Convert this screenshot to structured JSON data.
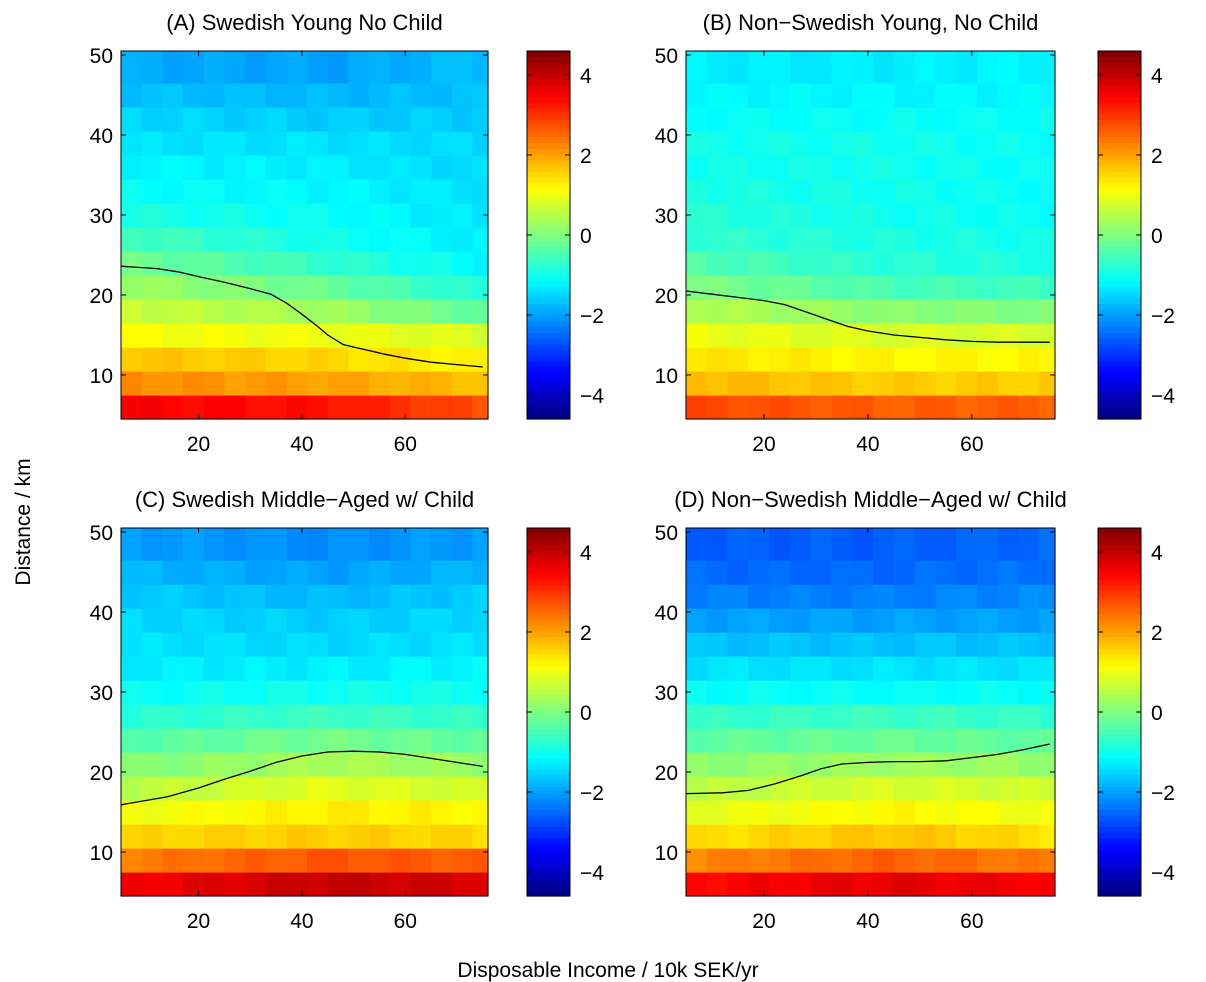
{
  "figure": {
    "ylabel": "Distance / km",
    "xlabel": "Disposable Income / 10k SEK/yr"
  },
  "colorbar": {
    "colormap": "jet",
    "range": [
      -4.6,
      4.6
    ],
    "ticks": [
      4,
      2,
      0,
      -2,
      -4
    ],
    "tick_labels": [
      "4",
      "2",
      "0",
      "−2",
      "−4"
    ]
  },
  "chart_data": [
    {
      "type": "heatmap",
      "title": "(A) Swedish Young No Child",
      "xlim": [
        5,
        76
      ],
      "ylim": [
        4.5,
        50.5
      ],
      "xticks": [
        20,
        40,
        60
      ],
      "yticks": [
        10,
        20,
        30,
        40,
        50
      ],
      "x_centers": [
        7,
        11,
        15,
        19,
        23,
        27,
        31,
        35,
        39,
        43,
        47,
        51,
        55,
        59,
        63,
        67,
        71,
        75
      ],
      "y_centers": [
        6,
        9,
        12,
        15,
        18,
        21,
        24,
        27,
        30,
        33,
        36,
        39,
        42,
        45,
        48
      ],
      "z_columns": {
        "x": [
          5,
          45,
          76
        ],
        "y_rows": [
          6,
          9,
          12,
          15,
          18,
          21,
          24,
          27,
          30,
          33,
          36,
          39,
          42,
          45,
          48
        ],
        "values": [
          [
            3.5,
            2.2,
            1.7,
            1.1,
            0.7,
            0.3,
            -0.1,
            -0.5,
            -0.9,
            -1.1,
            -1.2,
            -1.4,
            -1.5,
            -1.7,
            -1.9
          ],
          [
            3.3,
            2.0,
            1.5,
            1.0,
            0.3,
            -0.2,
            -0.7,
            -1.0,
            -1.1,
            -1.2,
            -1.3,
            -1.4,
            -1.6,
            -1.8,
            -2.0
          ],
          [
            2.7,
            1.7,
            1.2,
            0.8,
            -0.3,
            -0.9,
            -1.2,
            -1.3,
            -1.4,
            -1.4,
            -1.5,
            -1.5,
            -1.6,
            -1.7,
            -1.7
          ]
        ]
      },
      "series": [
        {
          "x": [
            5,
            12,
            16,
            20,
            25,
            30,
            34,
            37,
            40,
            43,
            45,
            48,
            52,
            56,
            60,
            65,
            70,
            75
          ],
          "y": [
            23.6,
            23.3,
            22.9,
            22.3,
            21.6,
            20.8,
            20.1,
            19.0,
            17.6,
            16.1,
            15.0,
            13.8,
            13.2,
            12.6,
            12.1,
            11.6,
            11.3,
            11.0
          ]
        }
      ]
    },
    {
      "type": "heatmap",
      "title": "(B) Non−Swedish Young, No Child",
      "xlim": [
        5,
        76
      ],
      "ylim": [
        4.5,
        50.5
      ],
      "xticks": [
        20,
        40,
        60
      ],
      "yticks": [
        10,
        20,
        30,
        40,
        50
      ],
      "x_centers": [
        7,
        11,
        15,
        19,
        23,
        27,
        31,
        35,
        39,
        43,
        47,
        51,
        55,
        59,
        63,
        67,
        71,
        75
      ],
      "y_centers": [
        6,
        9,
        12,
        15,
        18,
        21,
        24,
        27,
        30,
        33,
        36,
        39,
        42,
        45,
        48
      ],
      "z_columns": {
        "x": [
          5,
          45,
          76
        ],
        "y_rows": [
          6,
          9,
          12,
          15,
          18,
          21,
          24,
          27,
          30,
          33,
          36,
          39,
          42,
          45,
          48
        ],
        "values": [
          [
            2.8,
            1.8,
            1.4,
            1.0,
            0.5,
            0.0,
            -0.4,
            -0.7,
            -0.8,
            -0.9,
            -1.0,
            -1.0,
            -1.1,
            -1.2,
            -1.3
          ],
          [
            2.6,
            1.6,
            1.2,
            0.8,
            0.1,
            -0.5,
            -0.8,
            -0.9,
            -1.0,
            -1.0,
            -1.0,
            -1.0,
            -1.1,
            -1.2,
            -1.3
          ],
          [
            2.6,
            1.6,
            1.2,
            0.8,
            0.0,
            -0.6,
            -0.9,
            -1.0,
            -1.1,
            -1.1,
            -1.1,
            -1.1,
            -1.1,
            -1.2,
            -1.2
          ]
        ]
      },
      "series": [
        {
          "x": [
            5,
            10,
            15,
            20,
            24,
            28,
            32,
            36,
            40,
            45,
            50,
            55,
            60,
            65,
            70,
            75
          ],
          "y": [
            20.5,
            20.1,
            19.7,
            19.3,
            18.8,
            17.9,
            17.0,
            16.1,
            15.5,
            15.0,
            14.7,
            14.4,
            14.2,
            14.1,
            14.1,
            14.1
          ]
        }
      ]
    },
    {
      "type": "heatmap",
      "title": "(C) Swedish Middle−Aged w/ Child",
      "xlim": [
        5,
        76
      ],
      "ylim": [
        4.5,
        50.5
      ],
      "xticks": [
        20,
        40,
        60
      ],
      "yticks": [
        10,
        20,
        30,
        40,
        50
      ],
      "x_centers": [
        7,
        11,
        15,
        19,
        23,
        27,
        31,
        35,
        39,
        43,
        47,
        51,
        55,
        59,
        63,
        67,
        71,
        75
      ],
      "y_centers": [
        6,
        9,
        12,
        15,
        18,
        21,
        24,
        27,
        30,
        33,
        36,
        39,
        42,
        45,
        48
      ],
      "z_columns": {
        "x": [
          5,
          45,
          76
        ],
        "y_rows": [
          6,
          9,
          12,
          15,
          18,
          21,
          24,
          27,
          30,
          33,
          36,
          39,
          42,
          45,
          48
        ],
        "values": [
          [
            3.5,
            2.3,
            1.5,
            1.0,
            0.5,
            0.0,
            -0.4,
            -0.8,
            -1.1,
            -1.3,
            -1.4,
            -1.5,
            -1.6,
            -1.8,
            -2.0
          ],
          [
            4.0,
            2.7,
            1.6,
            1.3,
            0.9,
            0.4,
            -0.1,
            -0.6,
            -1.0,
            -1.3,
            -1.5,
            -1.6,
            -1.8,
            -2.0,
            -2.2
          ],
          [
            3.8,
            2.6,
            1.5,
            1.2,
            0.7,
            0.2,
            -0.3,
            -0.7,
            -1.0,
            -1.2,
            -1.4,
            -1.5,
            -1.6,
            -1.8,
            -2.0
          ]
        ]
      },
      "series": [
        {
          "x": [
            5,
            14,
            20,
            25,
            30,
            35,
            40,
            45,
            50,
            55,
            60,
            65,
            70,
            75
          ],
          "y": [
            15.9,
            16.9,
            18.0,
            19.1,
            20.1,
            21.2,
            22.0,
            22.5,
            22.6,
            22.5,
            22.2,
            21.7,
            21.2,
            20.7
          ]
        }
      ]
    },
    {
      "type": "heatmap",
      "title": "(D) Non−Swedish Middle−Aged w/ Child",
      "xlim": [
        5,
        76
      ],
      "ylim": [
        4.5,
        50.5
      ],
      "xticks": [
        20,
        40,
        60
      ],
      "yticks": [
        10,
        20,
        30,
        40,
        50
      ],
      "x_centers": [
        7,
        11,
        15,
        19,
        23,
        27,
        31,
        35,
        39,
        43,
        47,
        51,
        55,
        59,
        63,
        67,
        71,
        75
      ],
      "y_centers": [
        6,
        9,
        12,
        15,
        18,
        21,
        24,
        27,
        30,
        33,
        36,
        39,
        42,
        45,
        48
      ],
      "z_columns": {
        "x": [
          5,
          45,
          76
        ],
        "y_rows": [
          6,
          9,
          12,
          15,
          18,
          21,
          24,
          27,
          30,
          33,
          36,
          39,
          42,
          45,
          48
        ],
        "values": [
          [
            3.4,
            2.2,
            1.4,
            0.9,
            0.5,
            0.1,
            -0.3,
            -0.7,
            -1.1,
            -1.4,
            -1.7,
            -2.0,
            -2.3,
            -2.5,
            -2.6
          ],
          [
            3.7,
            2.6,
            1.7,
            1.2,
            0.8,
            0.3,
            -0.2,
            -0.6,
            -1.1,
            -1.4,
            -1.7,
            -2.0,
            -2.3,
            -2.5,
            -2.6
          ],
          [
            3.5,
            2.3,
            1.4,
            1.0,
            0.7,
            0.2,
            -0.3,
            -0.7,
            -1.1,
            -1.4,
            -1.7,
            -2.0,
            -2.2,
            -2.4,
            -2.5
          ]
        ]
      },
      "series": [
        {
          "x": [
            5,
            12,
            17,
            22,
            27,
            31,
            35,
            40,
            45,
            50,
            55,
            60,
            65,
            70,
            75
          ],
          "y": [
            17.3,
            17.4,
            17.7,
            18.5,
            19.5,
            20.4,
            21.0,
            21.2,
            21.3,
            21.3,
            21.4,
            21.8,
            22.2,
            22.8,
            23.5
          ]
        }
      ]
    }
  ]
}
